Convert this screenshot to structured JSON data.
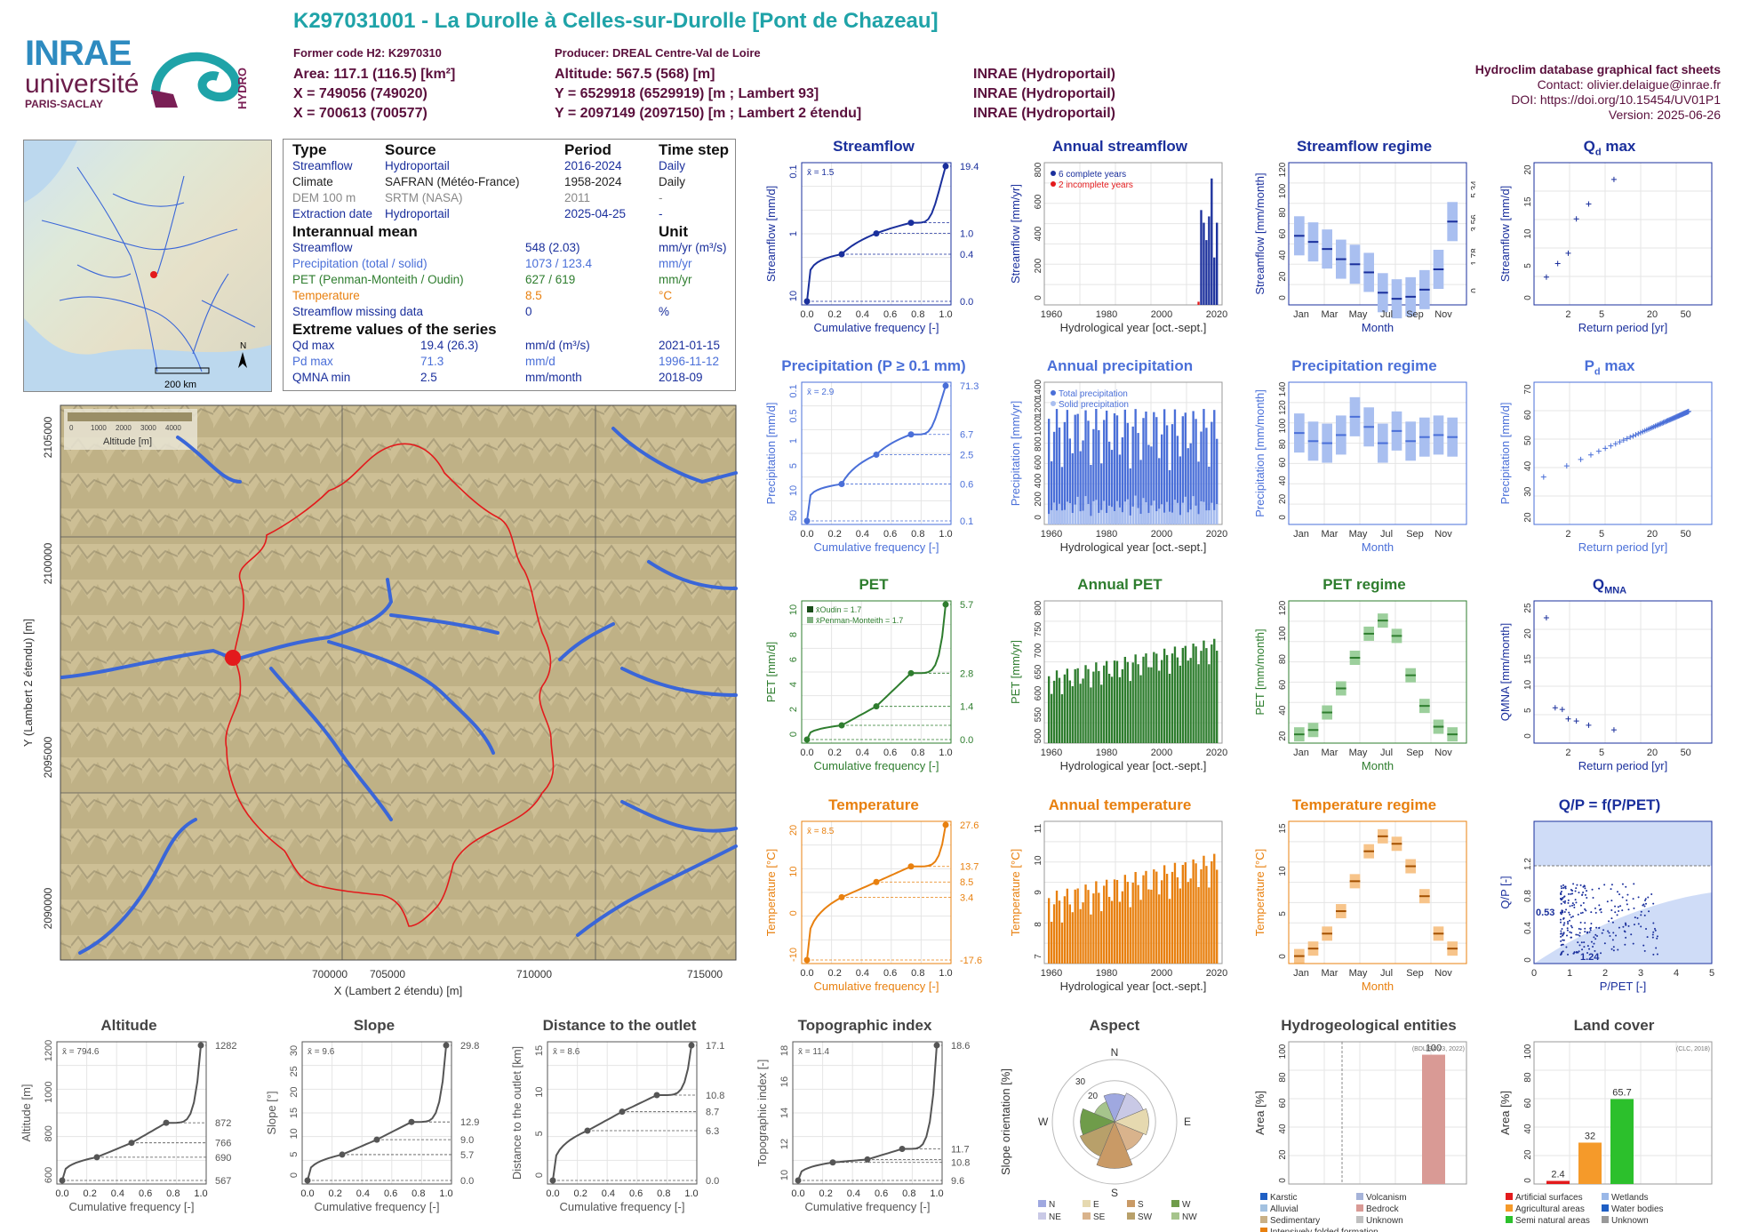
{
  "header": {
    "title": "K297031001 - La Durolle à Celles-sur-Durolle [Pont de Chazeau]",
    "former_code": "Former code H2: K2970310",
    "producer": "Producer: DREAL Centre-Val de Loire",
    "area": "Area: 117.1 (116.5) [km²]",
    "altitude": "Altitude: 567.5 (568) [m]",
    "x93": "X = 749056 (749020)",
    "y93": "Y = 6529918 (6529919) [m ; Lambert 93]",
    "x2e": "X = 700613 (700577)",
    "y2e": "Y = 2097149 (2097150) [m ; Lambert 2 étendu]",
    "src1": "INRAE (Hydroportail)",
    "src2": "INRAE (Hydroportail)",
    "src3": "INRAE (Hydroportail)",
    "db": "Hydroclim database graphical fact sheets",
    "contact": "Contact: olivier.delaigue@inrae.fr",
    "doi": "DOI: https://doi.org/10.15454/UV01P1",
    "version": "Version: 2025-06-26"
  },
  "logos": {
    "inrae": "INRAE",
    "universite": "université",
    "paris_saclay": "PARIS-SACLAY",
    "hydro": "HYDRO"
  },
  "colors": {
    "streamflow": "#1a2f9c",
    "precip": "#4a6fd8",
    "pet": "#2e7d2e",
    "temp": "#e8800f",
    "catchment": "#e31a1c",
    "river": "#3a66d8",
    "teal": "#1fa3a8",
    "maroon": "#5a0f3c"
  },
  "info": {
    "head": [
      "Type",
      "Source",
      "Period",
      "Time step"
    ],
    "rows": [
      [
        "Streamflow",
        "Hydroportail",
        "2016-2024",
        "Daily"
      ],
      [
        "Climate",
        "SAFRAN (Météo-France)",
        "1958-2024",
        "Daily"
      ],
      [
        "DEM 100 m",
        "SRTM (NASA)",
        "2011",
        "-"
      ],
      [
        "Extraction date",
        "Hydroportail",
        "2025-04-25",
        "-"
      ]
    ],
    "mean_head": [
      "Interannual mean",
      "Unit"
    ],
    "mean_rows": [
      [
        "Streamflow",
        "548 (2.03)",
        "mm/yr (m³/s)"
      ],
      [
        "Precipitation (total / solid)",
        "1073 / 123.4",
        "mm/yr"
      ],
      [
        "PET (Penman-Monteith / Oudin)",
        "627 / 619",
        "mm/yr"
      ],
      [
        "Temperature",
        "8.5",
        "°C"
      ],
      [
        "Streamflow missing data",
        "0",
        "%"
      ]
    ],
    "extreme_head": "Extreme values of the series",
    "extreme_rows": [
      [
        "Qd max",
        "19.4 (26.3)",
        "mm/d (m³/s)",
        "2021-01-15"
      ],
      [
        "Pd max",
        "71.3",
        "mm/d",
        "1996-11-12"
      ],
      [
        "QMNA min",
        "2.5",
        "mm/month",
        "2018-09"
      ]
    ]
  },
  "minimap": {
    "scale": "200 km",
    "north": "N"
  },
  "bigmap": {
    "legend_title": "Altitude [m]",
    "legend_ticks": [
      "0",
      "1000",
      "2000",
      "3000",
      "4000"
    ],
    "xticks": [
      "700000",
      "705000",
      "710000",
      "715000"
    ],
    "yticks": [
      "2105000",
      "2100000",
      "2095000",
      "2090000"
    ],
    "xlabel": "X (Lambert 2 étendu) [m]",
    "ylabel": "Y (Lambert 2 étendu) [m]"
  },
  "chart_data": [
    {
      "id": "streamflow",
      "type": "line",
      "title": "Streamflow",
      "xlabel": "Cumulative frequency [-]",
      "ylabel": "Streamflow [mm/d]",
      "mean": "x̄ = 1.5",
      "x": [
        0,
        0.25,
        0.5,
        0.75,
        1
      ],
      "y": [
        0.0,
        0.4,
        1.0,
        1.6,
        19.4
      ],
      "right_ticks": [
        "19.4",
        "1.0",
        "0.4",
        "0.0"
      ],
      "left_ticks": [
        "10",
        "1",
        "0.1"
      ]
    },
    {
      "id": "annual_streamflow",
      "type": "bar",
      "title": "Annual streamflow",
      "xlabel": "Hydrological year [oct.-sept.]",
      "ylabel": "Streamflow [mm/yr]",
      "legend": [
        "6 complete years",
        "2 incomplete years"
      ],
      "x": [
        2016,
        2017,
        2018,
        2019,
        2020,
        2021,
        2022,
        2023
      ],
      "values": [
        20,
        600,
        520,
        410,
        560,
        800,
        300,
        520
      ],
      "yticks": [
        "0",
        "200",
        "400",
        "600",
        "800"
      ],
      "xticks": [
        "1960",
        "1980",
        "2000",
        "2020"
      ]
    },
    {
      "id": "streamflow_regime",
      "type": "box",
      "title": "Streamflow regime",
      "xlabel": "Month",
      "ylabel": "Streamflow [mm/month]",
      "ylabel2": "Streamflow [m³/s]",
      "months": [
        "Jan",
        "Mar",
        "May",
        "Jul",
        "Sep",
        "Nov"
      ],
      "median": [
        68,
        62,
        55,
        45,
        40,
        32,
        12,
        6,
        8,
        15,
        35,
        82
      ],
      "yticks": [
        "0",
        "20",
        "40",
        "60",
        "80",
        "100",
        "120"
      ],
      "rticks": [
        "5.34",
        "3.56",
        "1.78",
        "0"
      ]
    },
    {
      "id": "qd_max",
      "type": "scatter",
      "title": "Qd max",
      "xlabel": "Return period [yr]",
      "ylabel": "Streamflow [mm/d]",
      "ylabel2": "Streamflow [m³/s]",
      "x": [
        1.1,
        1.5,
        2,
        2.5,
        3.5,
        7
      ],
      "y": [
        4.3,
        6.4,
        8,
        13.3,
        15.6,
        19.4
      ],
      "xticks": [
        "2",
        "5",
        "20",
        "50"
      ],
      "yticks": [
        "0",
        "5",
        "10",
        "15",
        "20"
      ]
    },
    {
      "id": "precipitation",
      "type": "line",
      "title": "Precipitation (P ≥ 0.1 mm)",
      "xlabel": "Cumulative frequency [-]",
      "ylabel": "Precipitation [mm/d]",
      "mean": "x̄ = 2.9",
      "x": [
        0,
        0.25,
        0.5,
        0.75,
        1
      ],
      "y": [
        0.1,
        0.6,
        2.5,
        6.7,
        71.3
      ],
      "right_ticks": [
        "71.3",
        "6.7",
        "2.5",
        "0.6",
        "0.1"
      ],
      "left_ticks": [
        "50",
        "10",
        "5",
        "1",
        "0.5",
        "0.1"
      ]
    },
    {
      "id": "annual_precipitation",
      "type": "bar",
      "title": "Annual precipitation",
      "xlabel": "Hydrological year [oct.-sept.]",
      "ylabel": "Precipitation [mm/yr]",
      "legend": [
        "Total precipitation",
        "Solid precipitation"
      ],
      "xticks": [
        "1960",
        "1980",
        "2000",
        "2020"
      ],
      "yticks": [
        "0",
        "200",
        "400",
        "600",
        "800",
        "1000",
        "1200",
        "1400"
      ]
    },
    {
      "id": "precipitation_regime",
      "type": "box",
      "title": "Precipitation regime",
      "xlabel": "Month",
      "ylabel": "Precipitation [mm/month]",
      "months": [
        "Jan",
        "Mar",
        "May",
        "Jul",
        "Sep",
        "Nov"
      ],
      "median": [
        90,
        82,
        80,
        88,
        106,
        96,
        80,
        92,
        82,
        86,
        88,
        86
      ],
      "yticks": [
        "0",
        "20",
        "40",
        "60",
        "80",
        "100",
        "120",
        "140"
      ]
    },
    {
      "id": "pd_max",
      "type": "scatter",
      "title": "Pd max",
      "xlabel": "Return period [yr]",
      "ylabel": "Precipitation [mm/d]",
      "xticks": [
        "2",
        "5",
        "20",
        "50"
      ],
      "yticks": [
        "20",
        "30",
        "40",
        "50",
        "60",
        "70"
      ]
    },
    {
      "id": "pet",
      "type": "line",
      "title": "PET",
      "xlabel": "Cumulative frequency [-]",
      "ylabel": "PET [mm/d]",
      "legend": [
        "x̄Oudin = 1.7",
        "x̄Penman-Monteith = 1.7"
      ],
      "x": [
        0,
        0.25,
        0.5,
        0.75,
        1
      ],
      "y": [
        0.0,
        0.6,
        1.4,
        2.8,
        5.7
      ],
      "right_ticks": [
        "5.7",
        "2.8",
        "1.4",
        "0.0"
      ],
      "left_ticks": [
        "0",
        "2",
        "4",
        "6",
        "8",
        "10"
      ]
    },
    {
      "id": "annual_pet",
      "type": "bar",
      "title": "Annual PET",
      "xlabel": "Hydrological year [oct.-sept.]",
      "ylabel": "PET [mm/yr]",
      "xticks": [
        "1960",
        "1980",
        "2000",
        "2020"
      ],
      "yticks": [
        "500",
        "550",
        "600",
        "650",
        "700",
        "750",
        "800"
      ]
    },
    {
      "id": "pet_regime",
      "type": "box",
      "title": "PET regime",
      "xlabel": "Month",
      "ylabel": "PET [mm/month]",
      "months": [
        "Jan",
        "Mar",
        "May",
        "Jul",
        "Sep",
        "Nov"
      ],
      "median": [
        8,
        12,
        28,
        50,
        78,
        100,
        112,
        98,
        62,
        34,
        15,
        8
      ],
      "yticks": [
        "20",
        "40",
        "60",
        "80",
        "100",
        "120"
      ]
    },
    {
      "id": "qmna",
      "type": "scatter",
      "title": "QMNA",
      "xlabel": "Return period [yr]",
      "ylabel": "QMNA [mm/month]",
      "x": [
        1.1,
        1.4,
        1.7,
        2,
        2.5,
        3.5,
        7
      ],
      "y": [
        23.8,
        6.7,
        6.4,
        4.6,
        4.2,
        3.4,
        2.5
      ],
      "xticks": [
        "2",
        "5",
        "20",
        "50"
      ],
      "yticks": [
        "0",
        "5",
        "10",
        "15",
        "20",
        "25"
      ]
    },
    {
      "id": "temperature",
      "type": "line",
      "title": "Temperature",
      "xlabel": "Cumulative frequency [-]",
      "ylabel": "Temperature [°C]",
      "mean": "x̄ = 8.5",
      "x": [
        0,
        0.25,
        0.5,
        0.75,
        1
      ],
      "y": [
        -17.6,
        3.4,
        8.5,
        13.7,
        27.6
      ],
      "right_ticks": [
        "27.6",
        "13.7",
        "8.5",
        "3.4",
        "-17.6"
      ],
      "left_ticks": [
        "-10",
        "0",
        "10",
        "20"
      ]
    },
    {
      "id": "annual_temperature",
      "type": "bar",
      "title": "Annual temperature",
      "xlabel": "Hydrological year [oct.-sept.]",
      "ylabel": "Temperature [°C]",
      "xticks": [
        "1960",
        "1980",
        "2000",
        "2020"
      ],
      "yticks": [
        "7",
        "8",
        "9",
        "10",
        "11"
      ]
    },
    {
      "id": "temperature_regime",
      "type": "box",
      "title": "Temperature regime",
      "xlabel": "Month",
      "ylabel": "Temperature [°C]",
      "months": [
        "Jan",
        "Mar",
        "May",
        "Jul",
        "Sep",
        "Nov"
      ],
      "median": [
        1,
        2,
        4,
        7,
        11,
        15,
        17,
        16,
        13,
        9,
        4,
        2
      ],
      "yticks": [
        "0",
        "5",
        "10",
        "15"
      ]
    },
    {
      "id": "qp",
      "type": "scatter",
      "title": "Q/P = f(P/PET)",
      "xlabel": "P/PET [-]",
      "ylabel": "Q/P [-]",
      "annot": [
        "0.53",
        "1.24"
      ],
      "xticks": [
        "0",
        "1",
        "2",
        "3",
        "4",
        "5"
      ],
      "yticks": [
        "0",
        "0.4",
        "0.8",
        "1.2"
      ]
    },
    {
      "id": "altitude",
      "type": "line",
      "title": "Altitude",
      "xlabel": "Cumulative frequency [-]",
      "ylabel": "Altitude [m]",
      "mean": "x̄ = 794.6",
      "x": [
        0,
        0.25,
        0.5,
        0.75,
        1
      ],
      "y": [
        567,
        690,
        766,
        872,
        1282
      ],
      "right_ticks": [
        "1282",
        "872",
        "766",
        "690",
        "567"
      ],
      "left_ticks": [
        "600",
        "800",
        "1000",
        "1200"
      ]
    },
    {
      "id": "slope",
      "type": "line",
      "title": "Slope",
      "xlabel": "Cumulative frequency [-]",
      "ylabel": "Slope [°]",
      "mean": "x̄ = 9.6",
      "x": [
        0,
        0.25,
        0.5,
        0.75,
        1
      ],
      "y": [
        0,
        5.7,
        9.0,
        12.9,
        29.8
      ],
      "right_ticks": [
        "29.8",
        "12.9",
        "9.0",
        "5.7",
        "0.0"
      ],
      "left_ticks": [
        "0",
        "5",
        "10",
        "15",
        "20",
        "25",
        "30"
      ]
    },
    {
      "id": "distance",
      "type": "line",
      "title": "Distance to the outlet",
      "xlabel": "Cumulative frequency [-]",
      "ylabel": "Distance to the outlet [km]",
      "mean": "x̄ = 8.6",
      "x": [
        0,
        0.25,
        0.5,
        0.75,
        1
      ],
      "y": [
        0,
        6.3,
        8.7,
        10.8,
        17.1
      ],
      "right_ticks": [
        "17.1",
        "10.8",
        "8.7",
        "6.3",
        "0.0"
      ],
      "left_ticks": [
        "0",
        "5",
        "10",
        "15"
      ]
    },
    {
      "id": "topo",
      "type": "line",
      "title": "Topographic index",
      "xlabel": "Cumulative frequency [-]",
      "ylabel": "Topographic index [-]",
      "mean": "x̄ = 11.4",
      "x": [
        0,
        0.25,
        0.5,
        0.75,
        1
      ],
      "y": [
        9.6,
        10.8,
        11.0,
        11.7,
        18.6
      ],
      "right_ticks": [
        "18.6",
        "11.7",
        "10.8",
        "9.6"
      ],
      "left_ticks": [
        "10",
        "12",
        "14",
        "16",
        "18"
      ]
    },
    {
      "id": "aspect",
      "type": "pie",
      "title": "Aspect",
      "ylabel": "Slope orientation [%]",
      "dirs": [
        "N",
        "NE",
        "E",
        "SE",
        "S",
        "SW",
        "W",
        "NW"
      ],
      "legend": [
        "N",
        "E",
        "S",
        "W",
        "NE",
        "SE",
        "SW",
        "NW"
      ],
      "rings": [
        "20",
        "30"
      ]
    },
    {
      "id": "hydrogeo",
      "type": "bar",
      "title": "Hydrogeological entities",
      "ylabel": "Area [%]",
      "source": "(BDLISA V3, 2022)",
      "values": [
        100
      ],
      "legend": [
        "Karstic",
        "Volcanism",
        "Alluvial",
        "Bedrock",
        "Sedimentary",
        "Unknown",
        "Intensively folded formation"
      ],
      "yticks": [
        "0",
        "20",
        "40",
        "60",
        "80",
        "100"
      ]
    },
    {
      "id": "landcover",
      "type": "bar",
      "title": "Land cover",
      "ylabel": "Area [%]",
      "source": "(CLC, 2018)",
      "values": [
        2.4,
        32,
        65.7
      ],
      "labels": [
        "2.4",
        "32",
        "65.7"
      ],
      "legend": [
        "Artificial surfaces",
        "Wetlands",
        "Agricultural areas",
        "Water bodies",
        "Semi natural areas",
        "Unknown"
      ],
      "yticks": [
        "0",
        "20",
        "40",
        "60",
        "80",
        "100"
      ]
    }
  ]
}
